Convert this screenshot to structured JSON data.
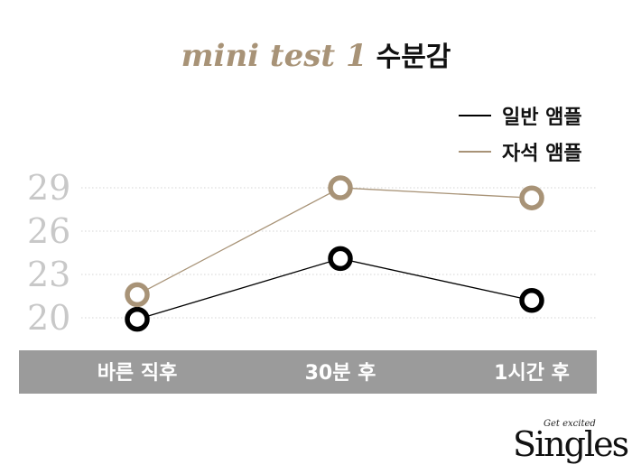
{
  "chart_data": {
    "type": "line",
    "title_main": "mini test 1",
    "title_sub": "수분감",
    "categories": [
      "바른 직후",
      "30분 후",
      "1시간 후"
    ],
    "y_ticks": [
      20,
      23,
      26,
      29
    ],
    "ylim": [
      18.5,
      30
    ],
    "grid": true,
    "legend_position": "top-right",
    "series": [
      {
        "name": "일반 앰플",
        "color": "#000000",
        "values": [
          19.9,
          24.1,
          21.2
        ]
      },
      {
        "name": "자석 앰플",
        "color": "#a89377",
        "values": [
          21.6,
          29.0,
          28.3
        ]
      }
    ]
  },
  "colors": {
    "axis_band": "#9b9b9b",
    "grid": "#d4d4d4"
  },
  "brand": {
    "tagline": "Get excited",
    "wordmark": "Singles"
  }
}
